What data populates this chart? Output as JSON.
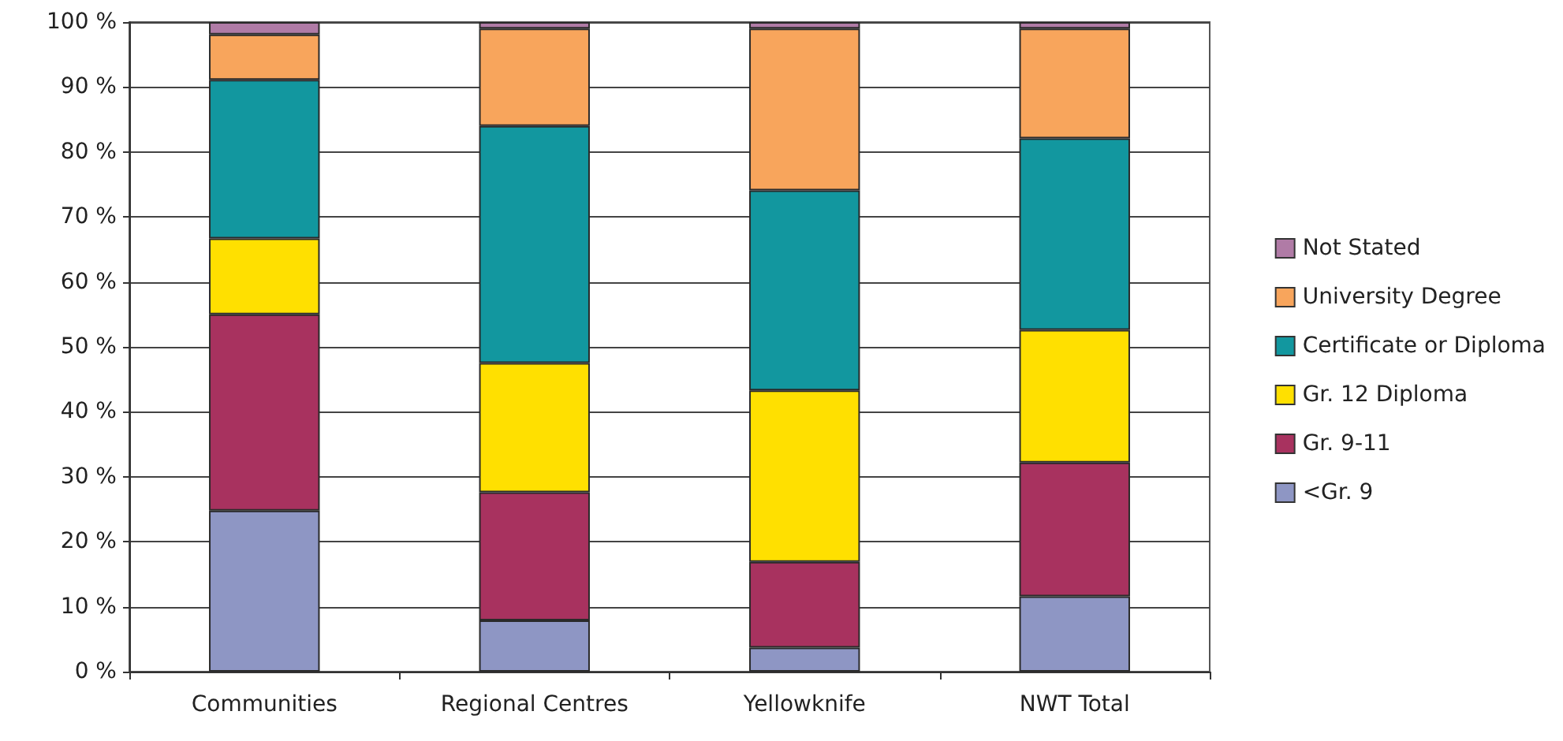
{
  "chart_data": {
    "type": "bar",
    "stacked": true,
    "categories": [
      "Communities",
      "Regional Centres",
      "Yellowknife",
      "NWT Total"
    ],
    "series": [
      {
        "name": "<Gr. 9",
        "color": "#8e96c4",
        "values": [
          24.8,
          7.9,
          3.7,
          11.6
        ]
      },
      {
        "name": "Gr. 9-11",
        "color": "#a8325f",
        "values": [
          30.2,
          19.7,
          13.2,
          20.6
        ]
      },
      {
        "name": "Gr. 12 Diploma",
        "color": "#ffe000",
        "values": [
          11.7,
          19.9,
          26.4,
          20.4
        ]
      },
      {
        "name": "Certificate or Diploma",
        "color": "#12979f",
        "values": [
          24.4,
          36.5,
          30.8,
          29.5
        ]
      },
      {
        "name": "University Degree",
        "color": "#f8a55c",
        "values": [
          7.0,
          15.0,
          24.9,
          16.9
        ]
      },
      {
        "name": "Not Stated",
        "color": "#b07ba6",
        "values": [
          1.9,
          1.0,
          1.0,
          1.0
        ]
      }
    ],
    "ylim": [
      0,
      100
    ],
    "yticks": [
      {
        "value": 0,
        "label": "0 %"
      },
      {
        "value": 10,
        "label": "10 %"
      },
      {
        "value": 20,
        "label": "20 %"
      },
      {
        "value": 30,
        "label": "30 %"
      },
      {
        "value": 40,
        "label": "40 %"
      },
      {
        "value": 50,
        "label": "50 %"
      },
      {
        "value": 60,
        "label": "60 %"
      },
      {
        "value": 70,
        "label": "70 %"
      },
      {
        "value": 80,
        "label": "80 %"
      },
      {
        "value": 90,
        "label": "90 %"
      },
      {
        "value": 100,
        "label": "100 %"
      }
    ],
    "grid": "y",
    "legend": "right"
  }
}
